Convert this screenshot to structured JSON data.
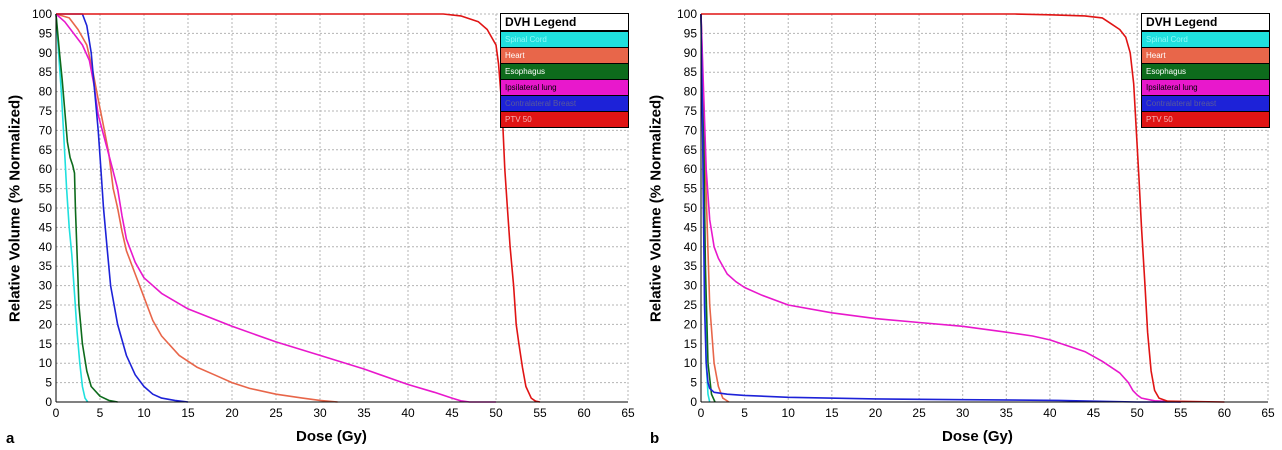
{
  "chart_data": [
    {
      "panel_label": "a",
      "type": "line",
      "xlabel": "Dose (Gy)",
      "ylabel": "Relative Volume (% Normalized)",
      "xlim": [
        0,
        65
      ],
      "ylim": [
        0,
        100
      ],
      "x_ticks": [
        0,
        5,
        10,
        15,
        20,
        25,
        30,
        35,
        40,
        45,
        50,
        55,
        60,
        65
      ],
      "y_ticks": [
        0,
        5,
        10,
        15,
        20,
        25,
        30,
        35,
        40,
        45,
        50,
        55,
        60,
        65,
        70,
        75,
        80,
        85,
        90,
        95,
        100
      ],
      "grid": true,
      "legend": {
        "title": "DVH Legend",
        "position": "top-right",
        "entries": [
          {
            "label": "Spinal Cord",
            "bg": "#1fe0de",
            "text_color": "#8ff8f8"
          },
          {
            "label": "Heart",
            "bg": "#e8664a",
            "text_color": "#ffffff"
          },
          {
            "label": "Esophagus",
            "bg": "#0d6b1c",
            "text_color": "#ffffff"
          },
          {
            "label": "Ipsilateral lung",
            "bg": "#e818cc",
            "text_color": "#000000"
          },
          {
            "label": "Contralateral Breast",
            "bg": "#1d22d8",
            "text_color": "#5a5a9a"
          },
          {
            "label": "PTV 50",
            "bg": "#e01414",
            "text_color": "#f4b8b8"
          }
        ]
      },
      "series": [
        {
          "name": "Spinal Cord",
          "color": "#1fe0de",
          "points": [
            [
              0,
              100
            ],
            [
              0.3,
              90
            ],
            [
              0.6,
              80
            ],
            [
              0.9,
              68
            ],
            [
              1.2,
              55
            ],
            [
              1.5,
              45
            ],
            [
              1.8,
              38
            ],
            [
              2.1,
              28
            ],
            [
              2.4,
              18
            ],
            [
              2.7,
              10
            ],
            [
              3.0,
              4
            ],
            [
              3.3,
              1
            ],
            [
              3.6,
              0
            ]
          ]
        },
        {
          "name": "Heart",
          "color": "#e8664a",
          "points": [
            [
              0,
              100
            ],
            [
              1.5,
              99
            ],
            [
              2.5,
              96
            ],
            [
              3.5,
              92
            ],
            [
              4.2,
              85
            ],
            [
              4.8,
              78
            ],
            [
              5.5,
              70
            ],
            [
              6,
              64
            ],
            [
              6.5,
              55
            ],
            [
              7,
              50
            ],
            [
              7.5,
              44
            ],
            [
              8,
              39
            ],
            [
              9,
              33
            ],
            [
              10,
              27
            ],
            [
              11,
              21
            ],
            [
              12,
              17
            ],
            [
              14,
              12
            ],
            [
              16,
              9
            ],
            [
              18,
              7
            ],
            [
              20,
              5
            ],
            [
              22,
              3.5
            ],
            [
              25,
              2
            ],
            [
              28,
              1
            ],
            [
              30,
              0.4
            ],
            [
              32,
              0
            ]
          ]
        },
        {
          "name": "Esophagus",
          "color": "#0d6b1c",
          "points": [
            [
              0,
              100
            ],
            [
              0.4,
              90
            ],
            [
              0.7,
              83
            ],
            [
              1.0,
              75
            ],
            [
              1.3,
              67
            ],
            [
              1.6,
              63
            ],
            [
              1.9,
              61
            ],
            [
              2.1,
              59
            ],
            [
              2.2,
              50
            ],
            [
              2.4,
              38
            ],
            [
              2.6,
              25
            ],
            [
              3.0,
              15
            ],
            [
              3.5,
              8
            ],
            [
              4,
              4
            ],
            [
              5,
              1.5
            ],
            [
              6,
              0.4
            ],
            [
              7,
              0
            ]
          ]
        },
        {
          "name": "Ipsilateral lung",
          "color": "#e818cc",
          "points": [
            [
              0,
              100
            ],
            [
              1,
              98
            ],
            [
              2,
              95
            ],
            [
              3,
              92
            ],
            [
              3.8,
              88
            ],
            [
              4.3,
              82
            ],
            [
              4.8,
              74
            ],
            [
              5.5,
              68
            ],
            [
              6.2,
              62
            ],
            [
              7,
              55
            ],
            [
              7.5,
              48
            ],
            [
              8,
              42
            ],
            [
              9,
              36
            ],
            [
              10,
              32
            ],
            [
              12,
              28
            ],
            [
              15,
              24
            ],
            [
              20,
              19.5
            ],
            [
              25,
              15.5
            ],
            [
              30,
              12
            ],
            [
              35,
              8.5
            ],
            [
              40,
              4.5
            ],
            [
              43,
              2.5
            ],
            [
              45,
              1
            ],
            [
              46,
              0.3
            ],
            [
              47,
              0
            ],
            [
              50,
              0
            ]
          ]
        },
        {
          "name": "Contralateral Breast",
          "color": "#1d22d8",
          "points": [
            [
              0,
              100
            ],
            [
              3,
              100
            ],
            [
              3.5,
              97
            ],
            [
              4,
              90
            ],
            [
              4.4,
              80
            ],
            [
              4.8,
              70
            ],
            [
              5.1,
              60
            ],
            [
              5.4,
              50
            ],
            [
              5.8,
              40
            ],
            [
              6.2,
              30
            ],
            [
              7,
              20
            ],
            [
              8,
              12
            ],
            [
              9,
              7
            ],
            [
              10,
              4
            ],
            [
              11,
              2
            ],
            [
              12,
              1
            ],
            [
              13.5,
              0.4
            ],
            [
              15,
              0
            ]
          ]
        },
        {
          "name": "PTV 50",
          "color": "#e01414",
          "points": [
            [
              0,
              100
            ],
            [
              44,
              100
            ],
            [
              46,
              99.5
            ],
            [
              48,
              98
            ],
            [
              49,
              96
            ],
            [
              50,
              92
            ],
            [
              50.3,
              87
            ],
            [
              50.7,
              75
            ],
            [
              51,
              60
            ],
            [
              51.3,
              50
            ],
            [
              51.6,
              40
            ],
            [
              52,
              30
            ],
            [
              52.3,
              20
            ],
            [
              52.6,
              15
            ],
            [
              53,
              9
            ],
            [
              53.4,
              4
            ],
            [
              54,
              1
            ],
            [
              54.5,
              0.2
            ],
            [
              55,
              0
            ]
          ]
        }
      ]
    },
    {
      "panel_label": "b",
      "type": "line",
      "xlabel": "Dose (Gy)",
      "ylabel": "Relative Volume (% Normalized)",
      "xlim": [
        0,
        65
      ],
      "ylim": [
        0,
        100
      ],
      "x_ticks": [
        0,
        5,
        10,
        15,
        20,
        25,
        30,
        35,
        40,
        45,
        50,
        55,
        60,
        65
      ],
      "y_ticks": [
        0,
        5,
        10,
        15,
        20,
        25,
        30,
        35,
        40,
        45,
        50,
        55,
        60,
        65,
        70,
        75,
        80,
        85,
        90,
        95,
        100
      ],
      "grid": true,
      "legend": {
        "title": "DVH Legend",
        "position": "top-right",
        "entries": [
          {
            "label": "Spinal Cord",
            "bg": "#1fe0de",
            "text_color": "#8ff8f8"
          },
          {
            "label": "Heart",
            "bg": "#e8664a",
            "text_color": "#ffffff"
          },
          {
            "label": "Esophagus",
            "bg": "#0d6b1c",
            "text_color": "#ffffff"
          },
          {
            "label": "Ipsilateral lung",
            "bg": "#e818cc",
            "text_color": "#000000"
          },
          {
            "label": "Contralateral breast",
            "bg": "#1d22d8",
            "text_color": "#5a5a9a"
          },
          {
            "label": "PTV 50",
            "bg": "#e01414",
            "text_color": "#f4b8b8"
          }
        ]
      },
      "series": [
        {
          "name": "Spinal Cord",
          "color": "#1fe0de",
          "points": [
            [
              0,
              100
            ],
            [
              0.2,
              80
            ],
            [
              0.4,
              40
            ],
            [
              0.6,
              10
            ],
            [
              0.8,
              2
            ],
            [
              1.0,
              0
            ]
          ]
        },
        {
          "name": "Heart",
          "color": "#e8664a",
          "points": [
            [
              0,
              100
            ],
            [
              0.5,
              60
            ],
            [
              1,
              25
            ],
            [
              1.5,
              10
            ],
            [
              2,
              4
            ],
            [
              2.5,
              1
            ],
            [
              3.2,
              0
            ]
          ]
        },
        {
          "name": "Esophagus",
          "color": "#0d6b1c",
          "points": [
            [
              0,
              100
            ],
            [
              0.3,
              70
            ],
            [
              0.5,
              35
            ],
            [
              0.8,
              10
            ],
            [
              1.2,
              2
            ],
            [
              1.6,
              0
            ]
          ]
        },
        {
          "name": "Ipsilateral lung",
          "color": "#e818cc",
          "points": [
            [
              0,
              100
            ],
            [
              0.3,
              80
            ],
            [
              0.6,
              60
            ],
            [
              1,
              47
            ],
            [
              1.5,
              40
            ],
            [
              2,
              37
            ],
            [
              3,
              33
            ],
            [
              4,
              31
            ],
            [
              5,
              29.5
            ],
            [
              7,
              27.5
            ],
            [
              10,
              25
            ],
            [
              15,
              23
            ],
            [
              20,
              21.5
            ],
            [
              25,
              20.5
            ],
            [
              30,
              19.5
            ],
            [
              35,
              18
            ],
            [
              38,
              17
            ],
            [
              40,
              16
            ],
            [
              42,
              14.5
            ],
            [
              44,
              13
            ],
            [
              46,
              10.5
            ],
            [
              48,
              7.5
            ],
            [
              49,
              5
            ],
            [
              49.5,
              3
            ],
            [
              50,
              1.8
            ],
            [
              50.5,
              1
            ],
            [
              52,
              0.3
            ],
            [
              55,
              0
            ]
          ]
        },
        {
          "name": "Contralateral breast",
          "color": "#1d22d8",
          "points": [
            [
              0,
              100
            ],
            [
              0.2,
              67
            ],
            [
              0.4,
              25
            ],
            [
              0.6,
              10
            ],
            [
              0.8,
              5
            ],
            [
              1,
              3.5
            ],
            [
              1.5,
              2.5
            ],
            [
              3,
              2
            ],
            [
              5,
              1.7
            ],
            [
              10,
              1.2
            ],
            [
              20,
              0.8
            ],
            [
              30,
              0.6
            ],
            [
              41,
              0.4
            ],
            [
              45,
              0.2
            ],
            [
              50,
              0
            ],
            [
              55,
              0
            ]
          ]
        },
        {
          "name": "PTV 50",
          "color": "#e01414",
          "points": [
            [
              0,
              100
            ],
            [
              36,
              100
            ],
            [
              40,
              99.8
            ],
            [
              44,
              99.5
            ],
            [
              46,
              99
            ],
            [
              47,
              97.5
            ],
            [
              48,
              96
            ],
            [
              48.7,
              94
            ],
            [
              49.2,
              90
            ],
            [
              49.6,
              82
            ],
            [
              49.9,
              70
            ],
            [
              50.2,
              58
            ],
            [
              50.5,
              45
            ],
            [
              50.9,
              30
            ],
            [
              51.2,
              18
            ],
            [
              51.6,
              8
            ],
            [
              52,
              3
            ],
            [
              52.5,
              1
            ],
            [
              53.5,
              0.2
            ],
            [
              60,
              0
            ]
          ]
        }
      ]
    }
  ]
}
